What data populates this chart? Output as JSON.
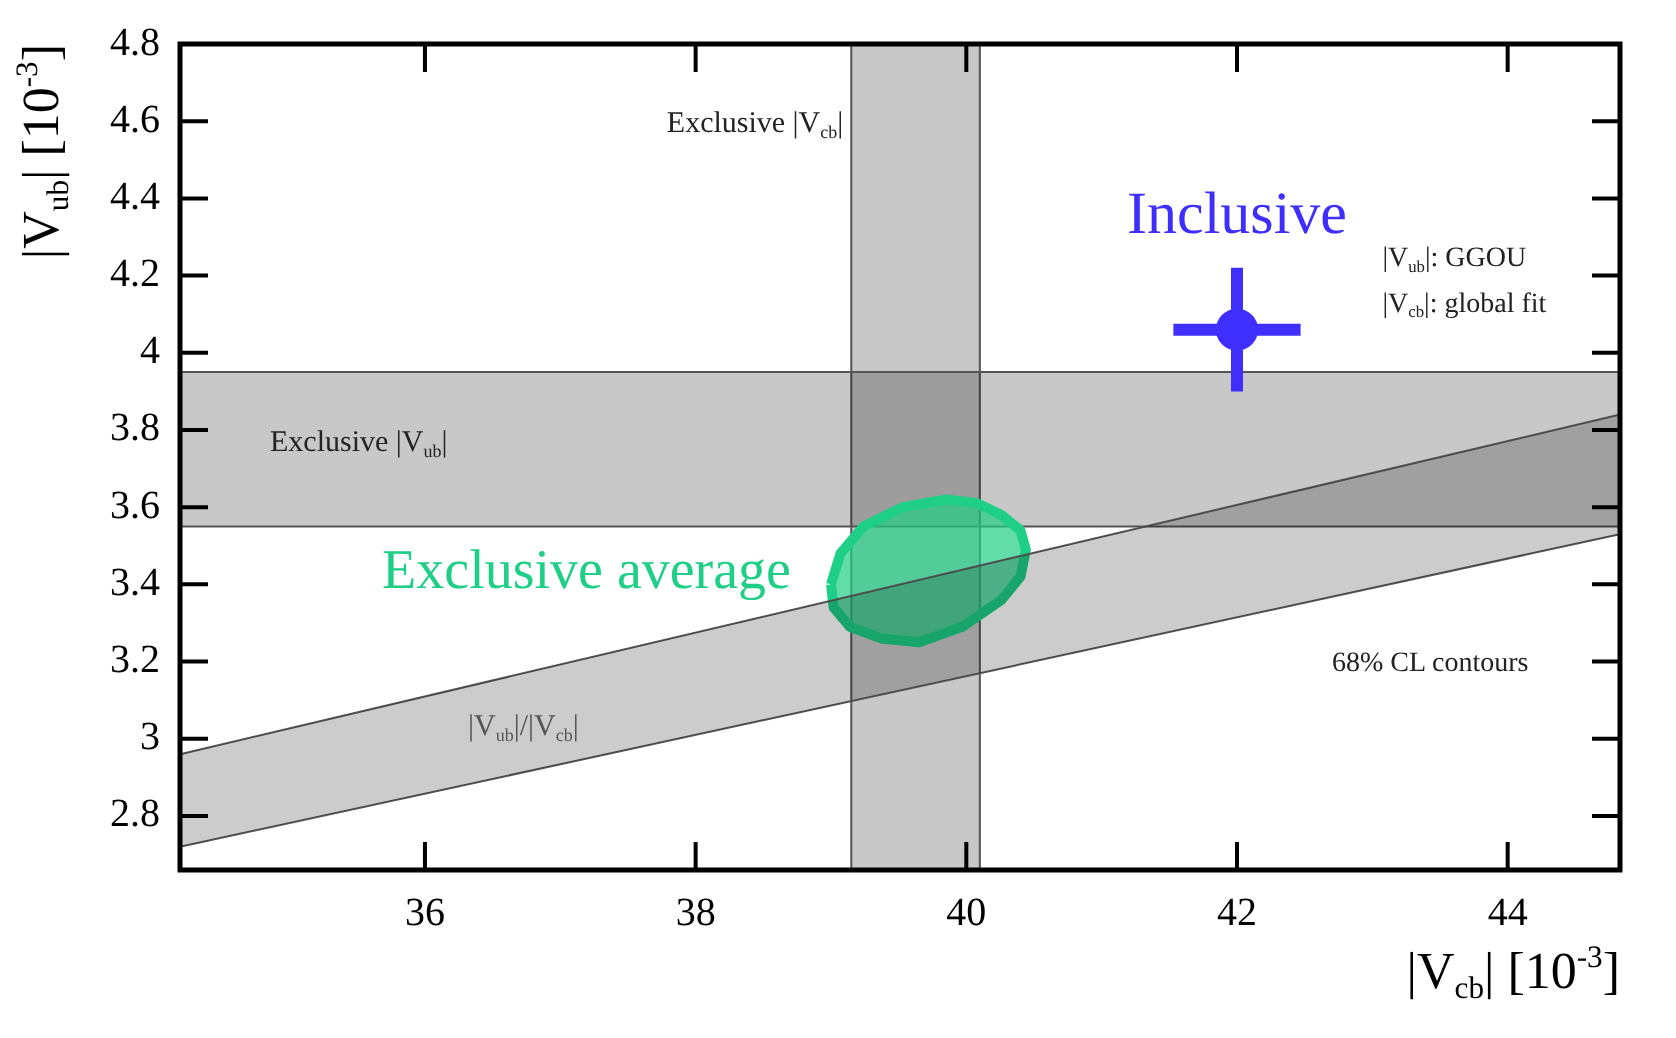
{
  "chart_data": {
    "type": "scatter",
    "xlabel": "|V$_{cb}$| [10$^{-3}$]",
    "ylabel": "|V$_{ub}$| [10$^{-3}$]",
    "xlim": [
      34.19,
      44.83
    ],
    "ylim": [
      2.66,
      4.8
    ],
    "xticks": [
      36,
      38,
      40,
      42,
      44
    ],
    "yticks": [
      2.8,
      3,
      3.2,
      3.4,
      3.6,
      3.8,
      4,
      4.2,
      4.4,
      4.6,
      4.8
    ],
    "grid": false,
    "legend": false,
    "bands": [
      {
        "axis": "x",
        "from": 39.15,
        "to": 40.1,
        "label": "Exclusive |V$_{cb}$|",
        "color": "#c8c8c8"
      },
      {
        "axis": "y",
        "from": 3.55,
        "to": 3.95,
        "label": "Exclusive |V$_{ub}$|",
        "color": "#c8c8c8"
      }
    ],
    "series": [
      {
        "type": "line",
        "name": "|V$_{ub}$|/|V$_{cb}$|",
        "color": "#555555",
        "x": [
          34.19,
          44.83
        ],
        "values": [
          2.96,
          3.84
        ],
        "lower": [
          2.72,
          3.53
        ],
        "upper": [
          2.96,
          3.84
        ]
      },
      {
        "type": "line",
        "color": "#555555",
        "x": [
          34.19,
          44.83
        ],
        "values": [
          2.72,
          3.53
        ]
      },
      {
        "type": "area",
        "name": "Exclusive average",
        "color": "#1fcf86",
        "x": [
          39.0,
          39.07,
          39.24,
          39.53,
          39.85,
          40.08,
          40.26,
          40.4,
          40.44,
          40.4,
          40.26,
          39.97,
          39.65,
          39.37,
          39.14,
          39.02,
          39.0
        ],
        "values": [
          3.4,
          3.48,
          3.55,
          3.6,
          3.62,
          3.61,
          3.58,
          3.54,
          3.49,
          3.42,
          3.36,
          3.29,
          3.25,
          3.26,
          3.29,
          3.34,
          3.4
        ]
      },
      {
        "name": "Inclusive",
        "color": "#3f2fff",
        "marker": "circle",
        "x": [
          42.0
        ],
        "values": [
          4.06
        ],
        "errors": [
          0.16
        ],
        "xerrors": [
          0.47
        ]
      }
    ],
    "annotations": [
      "|V$_{ub}$|: GGOU",
      "|V$_{cb}$|: global fit",
      "68% CL contours"
    ]
  }
}
